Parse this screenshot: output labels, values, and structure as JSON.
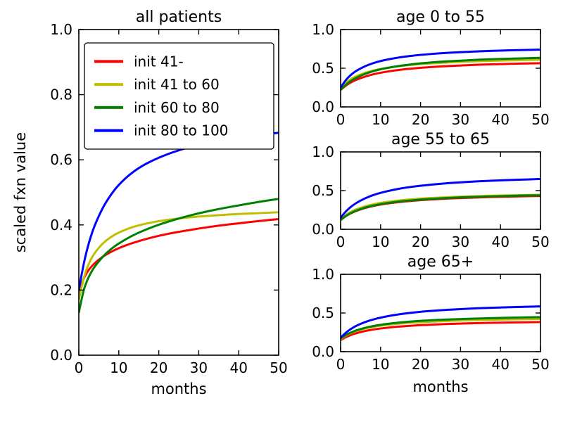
{
  "figure": {
    "background": "#ffffff"
  },
  "colors": {
    "red": "#ff0000",
    "yellow": "#bfbf00",
    "green": "#008000",
    "blue": "#0000ff",
    "axis": "#000000",
    "legend_bg": "#ffffff"
  },
  "chart_data": [
    {
      "id": "all_patients",
      "type": "line",
      "title": "all patients",
      "xlabel": "months",
      "ylabel": "scaled fxn value",
      "xlim": [
        0,
        50
      ],
      "ylim": [
        0,
        1
      ],
      "xticks": [
        0,
        10,
        20,
        30,
        40,
        50
      ],
      "xtick_labels": [
        "0",
        "10",
        "20",
        "30",
        "40",
        "50"
      ],
      "yticks": [
        0,
        0.2,
        0.4,
        0.6,
        0.8,
        1.0
      ],
      "ytick_labels": [
        "0.0",
        "0.2",
        "0.4",
        "0.6",
        "0.8",
        "1.0"
      ],
      "grid": false,
      "legend": {
        "position": "upper left",
        "entries": [
          "init 41-",
          "init 41 to 60",
          "init 60 to 80",
          "init 80 to 100"
        ]
      },
      "x": [
        0,
        1,
        2,
        3,
        4,
        6,
        8,
        10,
        13,
        16,
        20,
        25,
        30,
        35,
        40,
        45,
        50
      ],
      "series": [
        {
          "name": "init 41-",
          "color": "red",
          "values": [
            0.19,
            0.23,
            0.254,
            0.27,
            0.283,
            0.303,
            0.317,
            0.329,
            0.343,
            0.354,
            0.367,
            0.379,
            0.389,
            0.398,
            0.405,
            0.412,
            0.418
          ]
        },
        {
          "name": "init 41 to 60",
          "color": "yellow",
          "values": [
            0.17,
            0.228,
            0.267,
            0.294,
            0.315,
            0.344,
            0.363,
            0.377,
            0.392,
            0.402,
            0.412,
            0.42,
            0.426,
            0.43,
            0.434,
            0.436,
            0.439
          ]
        },
        {
          "name": "init 60 to 80",
          "color": "green",
          "values": [
            0.13,
            0.192,
            0.228,
            0.253,
            0.273,
            0.303,
            0.326,
            0.343,
            0.365,
            0.382,
            0.401,
            0.42,
            0.436,
            0.449,
            0.46,
            0.471,
            0.48
          ]
        },
        {
          "name": "init 80 to 100",
          "color": "blue",
          "values": [
            0.2,
            0.269,
            0.322,
            0.365,
            0.4,
            0.454,
            0.493,
            0.524,
            0.558,
            0.583,
            0.607,
            0.63,
            0.646,
            0.658,
            0.668,
            0.676,
            0.683
          ]
        }
      ]
    },
    {
      "id": "age_0_55",
      "type": "line",
      "title": "age 0 to 55",
      "xlabel": "",
      "ylabel": "",
      "xlim": [
        0,
        50
      ],
      "ylim": [
        0,
        1
      ],
      "xticks": [
        0,
        10,
        20,
        30,
        40,
        50
      ],
      "xtick_labels": [
        "0",
        "10",
        "20",
        "30",
        "40",
        "50"
      ],
      "yticks": [
        0,
        0.5,
        1.0
      ],
      "ytick_labels": [
        "0.0",
        "0.5",
        "1.0"
      ],
      "grid": false,
      "x": [
        0,
        1,
        2,
        3,
        4,
        6,
        8,
        10,
        13,
        16,
        20,
        25,
        30,
        35,
        40,
        45,
        50
      ],
      "series": [
        {
          "name": "init 41-",
          "color": "red",
          "values": [
            0.22,
            0.264,
            0.3,
            0.329,
            0.353,
            0.391,
            0.42,
            0.442,
            0.468,
            0.487,
            0.506,
            0.523,
            0.536,
            0.546,
            0.553,
            0.56,
            0.565
          ]
        },
        {
          "name": "init 41 to 60",
          "color": "yellow",
          "values": [
            0.25,
            0.301,
            0.341,
            0.373,
            0.399,
            0.439,
            0.469,
            0.491,
            0.516,
            0.535,
            0.554,
            0.57,
            0.582,
            0.592,
            0.599,
            0.605,
            0.61
          ]
        },
        {
          "name": "init 60 to 80",
          "color": "green",
          "values": [
            0.22,
            0.273,
            0.316,
            0.351,
            0.38,
            0.426,
            0.46,
            0.487,
            0.517,
            0.54,
            0.563,
            0.584,
            0.599,
            0.611,
            0.62,
            0.627,
            0.634
          ]
        },
        {
          "name": "init 80 to 100",
          "color": "blue",
          "values": [
            0.25,
            0.329,
            0.388,
            0.433,
            0.47,
            0.525,
            0.564,
            0.594,
            0.626,
            0.65,
            0.673,
            0.694,
            0.708,
            0.72,
            0.728,
            0.735,
            0.741
          ]
        }
      ]
    },
    {
      "id": "age_55_65",
      "type": "line",
      "title": "age 55 to 65",
      "xlabel": "",
      "ylabel": "",
      "xlim": [
        0,
        50
      ],
      "ylim": [
        0,
        1
      ],
      "xticks": [
        0,
        10,
        20,
        30,
        40,
        50
      ],
      "xtick_labels": [
        "0",
        "10",
        "20",
        "30",
        "40",
        "50"
      ],
      "yticks": [
        0,
        0.5,
        1.0
      ],
      "ytick_labels": [
        "0.0",
        "0.5",
        "1.0"
      ],
      "grid": false,
      "x": [
        0,
        1,
        2,
        3,
        4,
        6,
        8,
        10,
        13,
        16,
        20,
        25,
        30,
        35,
        40,
        45,
        50
      ],
      "series": [
        {
          "name": "init 41-",
          "color": "red",
          "values": [
            0.12,
            0.16,
            0.192,
            0.218,
            0.24,
            0.274,
            0.3,
            0.32,
            0.343,
            0.36,
            0.377,
            0.393,
            0.404,
            0.413,
            0.42,
            0.426,
            0.43
          ]
        },
        {
          "name": "init 41 to 60",
          "color": "yellow",
          "values": [
            0.13,
            0.175,
            0.21,
            0.238,
            0.261,
            0.296,
            0.322,
            0.342,
            0.364,
            0.38,
            0.397,
            0.411,
            0.422,
            0.43,
            0.436,
            0.442,
            0.446
          ]
        },
        {
          "name": "init 60 to 80",
          "color": "green",
          "values": [
            0.12,
            0.161,
            0.194,
            0.221,
            0.243,
            0.279,
            0.305,
            0.326,
            0.349,
            0.367,
            0.384,
            0.4,
            0.412,
            0.421,
            0.428,
            0.435,
            0.439
          ]
        },
        {
          "name": "init 80 to 100",
          "color": "blue",
          "values": [
            0.15,
            0.214,
            0.266,
            0.308,
            0.343,
            0.399,
            0.44,
            0.472,
            0.509,
            0.537,
            0.564,
            0.589,
            0.608,
            0.622,
            0.633,
            0.642,
            0.65
          ]
        }
      ]
    },
    {
      "id": "age_65_plus",
      "type": "line",
      "title": "age 65+",
      "xlabel": "months",
      "ylabel": "",
      "xlim": [
        0,
        50
      ],
      "ylim": [
        0,
        1
      ],
      "xticks": [
        0,
        10,
        20,
        30,
        40,
        50
      ],
      "xtick_labels": [
        "0",
        "10",
        "20",
        "30",
        "40",
        "50"
      ],
      "yticks": [
        0,
        0.5,
        1.0
      ],
      "ytick_labels": [
        "0.0",
        "0.5",
        "1.0"
      ],
      "grid": false,
      "x": [
        0,
        1,
        2,
        3,
        4,
        6,
        8,
        10,
        13,
        16,
        20,
        25,
        30,
        35,
        40,
        45,
        50
      ],
      "series": [
        {
          "name": "init 41-",
          "color": "red",
          "values": [
            0.15,
            0.18,
            0.204,
            0.224,
            0.24,
            0.266,
            0.285,
            0.3,
            0.317,
            0.33,
            0.343,
            0.355,
            0.363,
            0.37,
            0.375,
            0.379,
            0.383
          ]
        },
        {
          "name": "init 41 to 60",
          "color": "yellow",
          "values": [
            0.16,
            0.198,
            0.227,
            0.25,
            0.269,
            0.298,
            0.32,
            0.336,
            0.355,
            0.369,
            0.382,
            0.394,
            0.403,
            0.41,
            0.415,
            0.42,
            0.423
          ]
        },
        {
          "name": "init 60 to 80",
          "color": "green",
          "values": [
            0.17,
            0.206,
            0.234,
            0.257,
            0.277,
            0.307,
            0.33,
            0.348,
            0.368,
            0.383,
            0.399,
            0.412,
            0.422,
            0.43,
            0.437,
            0.442,
            0.446
          ]
        },
        {
          "name": "init 80 to 100",
          "color": "blue",
          "values": [
            0.18,
            0.232,
            0.274,
            0.308,
            0.337,
            0.381,
            0.415,
            0.441,
            0.471,
            0.493,
            0.516,
            0.536,
            0.551,
            0.563,
            0.572,
            0.579,
            0.585
          ]
        }
      ]
    }
  ]
}
